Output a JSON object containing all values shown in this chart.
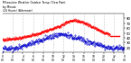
{
  "title_line1": "Milwaukee Weather Outdoor Temp / Dew Point",
  "title_line2": "by Minute",
  "title_line3": "(24 Hours) (Alternate)",
  "bg_color": "#ffffff",
  "plot_bg": "#ffffff",
  "temp_color": "#ff0000",
  "dew_color": "#0000cc",
  "grid_color": "#888888",
  "ylim": [
    10,
    90
  ],
  "yticks": [
    20,
    30,
    40,
    50,
    60,
    70,
    80
  ],
  "xlim": [
    0,
    1440
  ],
  "n_points": 1440,
  "temp_start": 37,
  "temp_peak": 76,
  "temp_peak_time": 810,
  "temp_end": 44,
  "dew_base": 18,
  "dew_peak": 46,
  "dew_peak_time": 700,
  "flat_red_start": 1270,
  "flat_red_end": 1390,
  "flat_red_val": 43,
  "vgrid_times": [
    120,
    240,
    360,
    480,
    600,
    720,
    840,
    960,
    1080,
    1200,
    1320
  ]
}
